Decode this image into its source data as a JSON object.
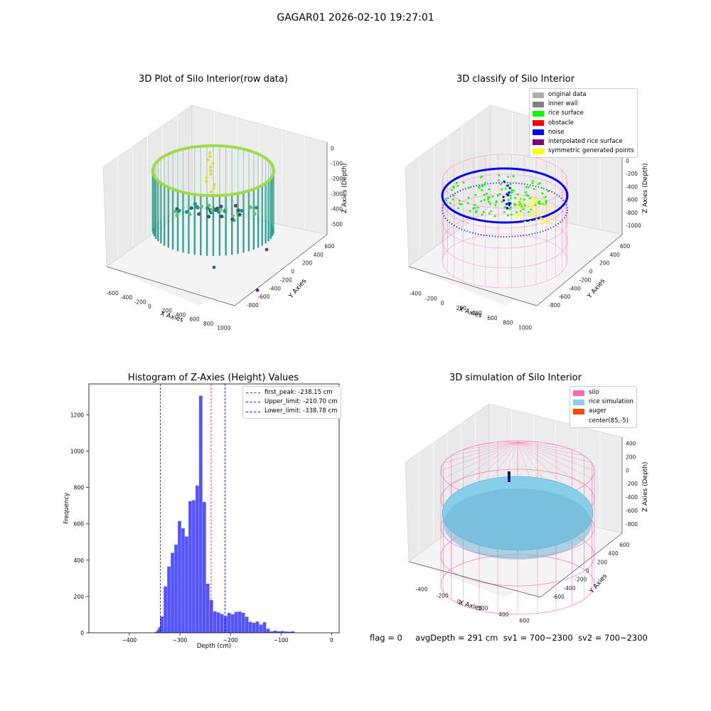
{
  "figure": {
    "title": "GAGAR01 2026-02-10 19:27:01",
    "status": {
      "flag": "flag = 0",
      "avg_depth": "avgDepth = 291 cm",
      "sv1": "sv1 = 700~2300",
      "sv2": "sv2 = 700~2300"
    }
  },
  "colors": {
    "original": "#b0b0b0",
    "inner_wall": "#808080",
    "rice_surface": "#00ff00",
    "obstacle": "#ff0000",
    "noise": "#0000ff",
    "interpolated": "#800080",
    "symmetric": "#ffff00",
    "silo": "#ff69b4",
    "rice_sim": "#87ceeb",
    "auger": "#ff4500",
    "hist_bar": "#4b4bff",
    "peak_line": "#ff0000",
    "limit_line": "#0000ff"
  },
  "chart_data": [
    {
      "type": "scatter",
      "projection": "3d",
      "title": "3D Plot of Silo Interior(row data)",
      "xlabel": "X Axies",
      "ylabel": "Y Axies",
      "zlabel": "Z Axies (Depth)",
      "xticks": [
        "-600",
        "-400",
        "-200",
        "0",
        "200",
        "400",
        "600",
        "800",
        "1000"
      ],
      "yticks": [
        "-800",
        "-600",
        "-400",
        "-200",
        "0",
        "200",
        "400",
        "600"
      ],
      "zticks": [
        "0",
        "-100",
        "-200",
        "-300",
        "-400",
        "-500"
      ],
      "colormap": "viridis"
    },
    {
      "type": "scatter",
      "projection": "3d",
      "title": "3D classify of Silo Interior",
      "xlabel": "X Axies",
      "ylabel": "Y Axies",
      "zlabel": "Z Axies (Depth)",
      "xticks": [
        "-400",
        "-200",
        "0",
        "200",
        "400",
        "600",
        "800",
        "1000"
      ],
      "yticks": [
        "-800",
        "-600",
        "-400",
        "-200",
        "0",
        "200",
        "400",
        "600"
      ],
      "zticks": [
        "200",
        "0",
        "-200",
        "-400",
        "-600",
        "-800",
        "-1000"
      ],
      "legend": [
        "original data",
        "inner wall",
        "rice surface",
        "obstacle",
        "noise",
        "interpolated rice surface",
        "symmetric generated points"
      ]
    },
    {
      "type": "bar",
      "title": "Histogram of Z-Axies (Height) Values",
      "xlabel": "Depth (cm)",
      "ylabel": "Frequency",
      "xlim": [
        -480,
        15
      ],
      "ylim": [
        0,
        1370
      ],
      "xticks": [
        -400,
        -300,
        -200,
        -100,
        0
      ],
      "yticks": [
        0,
        200,
        400,
        600,
        800,
        1000,
        1200
      ],
      "bin_width": 7,
      "bins": [
        [
          -350,
          5
        ],
        [
          -346,
          15
        ],
        [
          -343,
          30
        ],
        [
          -339,
          90
        ],
        [
          -332,
          255
        ],
        [
          -325,
          365
        ],
        [
          -318,
          440
        ],
        [
          -311,
          485
        ],
        [
          -304,
          615
        ],
        [
          -297,
          575
        ],
        [
          -290,
          530
        ],
        [
          -283,
          725
        ],
        [
          -276,
          730
        ],
        [
          -269,
          810
        ],
        [
          -262,
          1305
        ],
        [
          -255,
          720
        ],
        [
          -248,
          270
        ],
        [
          -241,
          180
        ],
        [
          -234,
          118
        ],
        [
          -227,
          112
        ],
        [
          -220,
          103
        ],
        [
          -213,
          92
        ],
        [
          -206,
          110
        ],
        [
          -199,
          102
        ],
        [
          -192,
          115
        ],
        [
          -185,
          117
        ],
        [
          -178,
          110
        ],
        [
          -171,
          88
        ],
        [
          -164,
          60
        ],
        [
          -157,
          55
        ],
        [
          -150,
          62
        ],
        [
          -143,
          45
        ],
        [
          -136,
          58
        ],
        [
          -129,
          22
        ],
        [
          -122,
          8
        ],
        [
          -115,
          12
        ],
        [
          -108,
          8
        ],
        [
          -101,
          10
        ],
        [
          -94,
          7
        ],
        [
          -87,
          6
        ],
        [
          -80,
          8
        ]
      ],
      "vlines": [
        {
          "label": "first_peak: -238.15 cm",
          "x": -238.15,
          "style": "peak"
        },
        {
          "label": "Upper_limit: -210.70 cm",
          "x": -210.7,
          "style": "limit"
        },
        {
          "label": "Lower_limit: -338.78 cm",
          "x": -338.78,
          "style": "limit"
        }
      ]
    },
    {
      "type": "surface",
      "projection": "3d",
      "title": "3D simulation of Silo Interior",
      "xlabel": "X Axies",
      "ylabel": "Y Axies",
      "zlabel": "Z Axies (Depth)",
      "xticks": [
        "-400",
        "-200",
        "0",
        "200",
        "400",
        "600"
      ],
      "yticks": [
        "-600",
        "-400",
        "-200",
        "0",
        "200",
        "400",
        "600"
      ],
      "zticks": [
        "400",
        "200",
        "0",
        "-200",
        "-400",
        "-600",
        "-800"
      ],
      "legend": [
        "silo",
        "rice simulation",
        "auger",
        "center(85,-5)"
      ]
    }
  ]
}
